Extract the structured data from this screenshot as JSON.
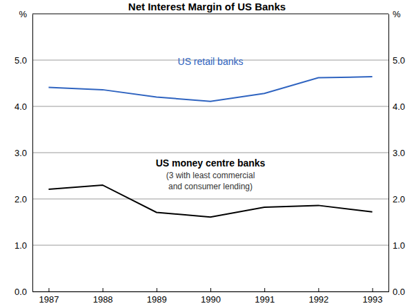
{
  "chart_data": {
    "type": "line",
    "title": "Net Interest Margin of US Banks",
    "ylabel": "%",
    "categories": [
      "1987",
      "1988",
      "1989",
      "1990",
      "1991",
      "1992",
      "1993"
    ],
    "series": [
      {
        "name": "US retail banks",
        "color": "#2e63c0",
        "values": [
          4.41,
          4.36,
          4.2,
          4.11,
          4.28,
          4.62,
          4.64
        ]
      },
      {
        "name": "US money centre banks",
        "color": "#000000",
        "values": [
          2.21,
          2.3,
          1.71,
          1.61,
          1.82,
          1.86,
          1.72
        ]
      }
    ],
    "annotations": [
      "(3 with least commercial",
      "and consumer lending)"
    ],
    "ylim": [
      0,
      6
    ],
    "yticks": [
      {
        "value": 0,
        "label": "0.0"
      },
      {
        "value": 1,
        "label": "1.0"
      },
      {
        "value": 2,
        "label": "2.0"
      },
      {
        "value": 3,
        "label": "3.0"
      },
      {
        "value": 4,
        "label": "4.0"
      },
      {
        "value": 5,
        "label": "5.0"
      }
    ],
    "grid": true
  }
}
